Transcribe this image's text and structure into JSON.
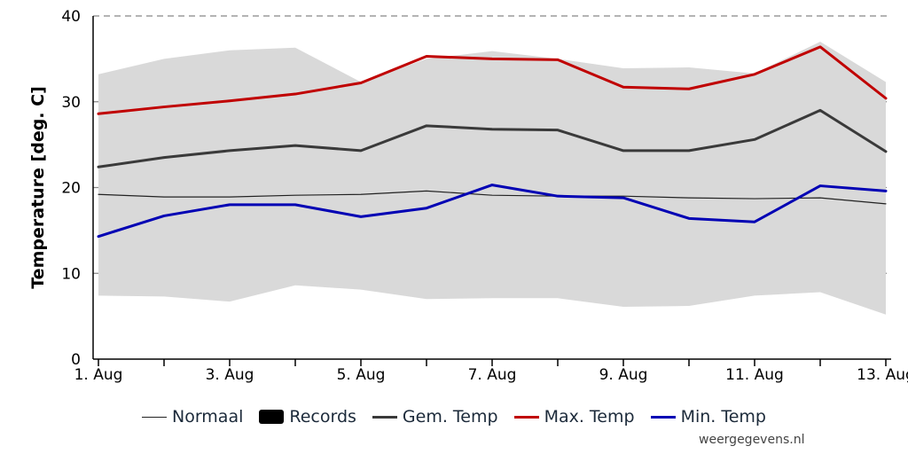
{
  "chart_data": {
    "type": "line",
    "x": [
      "1. Aug",
      "2. Aug",
      "3. Aug",
      "4. Aug",
      "5. Aug",
      "6. Aug",
      "7. Aug",
      "8. Aug",
      "9. Aug",
      "10. Aug",
      "11. Aug",
      "12. Aug",
      "13. Aug"
    ],
    "tick_labels": [
      "1. Aug",
      "3. Aug",
      "5. Aug",
      "7. Aug",
      "9. Aug",
      "11. Aug",
      "13. Aug"
    ],
    "ylabel": "Temperature [deg. C]",
    "xlabel": "",
    "ylim": [
      0,
      40
    ],
    "yticks": [
      0,
      10,
      20,
      30,
      40
    ],
    "grid": "horizontal dashed",
    "records": {
      "name": "Records",
      "color": "#d9d9d9",
      "upper": [
        33.2,
        35.0,
        36.0,
        36.3,
        32.3,
        35.0,
        35.9,
        35.0,
        33.9,
        34.0,
        33.3,
        37.0,
        32.3
      ],
      "lower": [
        7.4,
        7.3,
        6.7,
        8.6,
        8.1,
        7.0,
        7.1,
        7.1,
        6.1,
        6.2,
        7.4,
        7.8,
        5.2
      ]
    },
    "series": [
      {
        "name": "Normaal",
        "color": "#222222",
        "width": 1.2,
        "values": [
          19.2,
          18.9,
          18.9,
          19.1,
          19.2,
          19.6,
          19.1,
          19.0,
          19.0,
          18.8,
          18.7,
          18.8,
          18.1
        ]
      },
      {
        "name": "Gem. Temp",
        "color": "#3a3a3a",
        "width": 3,
        "values": [
          22.4,
          23.5,
          24.3,
          24.9,
          24.3,
          27.2,
          26.8,
          26.7,
          24.3,
          24.3,
          25.6,
          29.0,
          24.2
        ]
      },
      {
        "name": "Max. Temp",
        "color": "#c00000",
        "width": 3,
        "values": [
          28.6,
          29.4,
          30.1,
          30.9,
          32.2,
          35.3,
          35.0,
          34.9,
          31.7,
          31.5,
          33.2,
          36.4,
          30.4
        ]
      },
      {
        "name": "Min. Temp",
        "color": "#0000b4",
        "width": 3,
        "values": [
          14.3,
          16.7,
          18.0,
          18.0,
          16.6,
          17.6,
          20.3,
          19.0,
          18.8,
          16.4,
          16.0,
          20.2,
          19.6
        ]
      }
    ],
    "legend": [
      {
        "label": "Normaal",
        "kind": "line",
        "color": "#222222"
      },
      {
        "label": "Records",
        "kind": "box",
        "color": "#000000"
      },
      {
        "label": "Gem. Temp",
        "kind": "line",
        "color": "#3a3a3a"
      },
      {
        "label": "Max. Temp",
        "kind": "line",
        "color": "#c00000"
      },
      {
        "label": "Min. Temp",
        "kind": "line",
        "color": "#0000b4"
      }
    ],
    "legend_position": "bottom-center"
  },
  "source": "weergegevens.nl"
}
